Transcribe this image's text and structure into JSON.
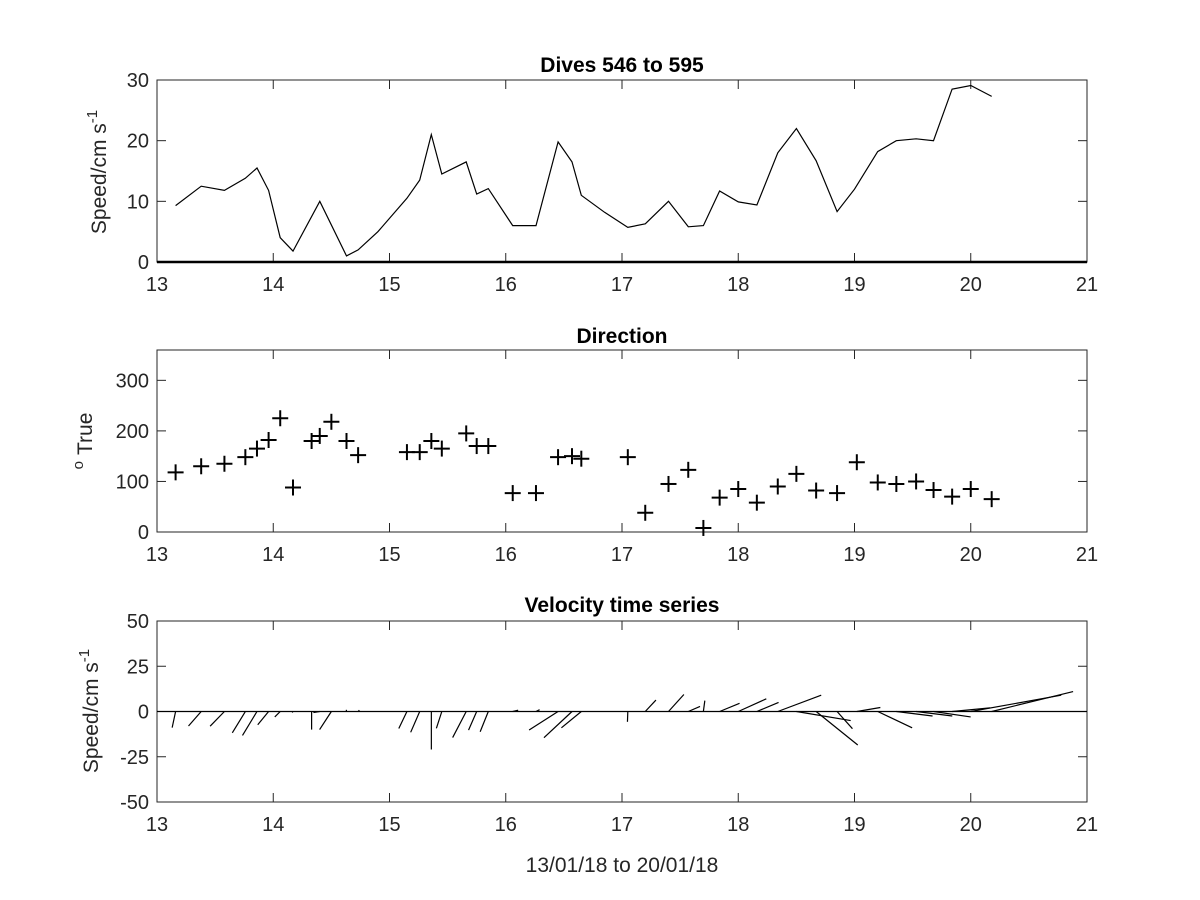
{
  "colors": {
    "line": "#000000",
    "axis": "#262626",
    "background": "#ffffff"
  },
  "chart_data": [
    {
      "type": "line",
      "title": "Dives 546 to 595",
      "ylabel": "Speed/cm s",
      "ylabel_superscript": "-1",
      "xlim": [
        13,
        21
      ],
      "ylim": [
        0,
        30
      ],
      "xticks": [
        "13",
        "14",
        "15",
        "16",
        "17",
        "18",
        "19",
        "20",
        "21"
      ],
      "yticks": [
        "0",
        "10",
        "20",
        "30"
      ],
      "series": [
        {
          "x": [
            13.16,
            13.38,
            13.58,
            13.76,
            13.86,
            13.96,
            14.06,
            14.17,
            14.4,
            14.63,
            14.73,
            14.9,
            15.15,
            15.26,
            15.36,
            15.45,
            15.66,
            15.75,
            15.85,
            16.06,
            16.26,
            16.45,
            16.57,
            16.65,
            16.85,
            17.05,
            17.2,
            17.4,
            17.57,
            17.7,
            17.84,
            18.0,
            18.16,
            18.34,
            18.5,
            18.67,
            18.85,
            19.0,
            19.2,
            19.36,
            19.53,
            19.68,
            19.84,
            20.0,
            20.18
          ],
          "y": [
            9.3,
            12.5,
            11.8,
            13.8,
            15.5,
            11.8,
            4.0,
            1.8,
            10.0,
            1.0,
            2.0,
            5.0,
            10.5,
            13.5,
            21.0,
            14.5,
            16.5,
            11.2,
            12.1,
            6.0,
            6.0,
            19.8,
            16.5,
            11.0,
            8.2,
            5.7,
            6.3,
            10.0,
            5.8,
            6.0,
            11.7,
            9.9,
            9.4,
            18.0,
            22.0,
            16.7,
            8.3,
            12.0,
            18.2,
            20.0,
            20.3,
            20.0,
            28.5,
            29.1,
            27.3
          ]
        }
      ]
    },
    {
      "type": "scatter",
      "title": "Direction",
      "ylabel": "True",
      "ylabel_superscript": "o",
      "xlim": [
        13,
        21
      ],
      "ylim": [
        0,
        360
      ],
      "xticks": [
        "13",
        "14",
        "15",
        "16",
        "17",
        "18",
        "19",
        "20",
        "21"
      ],
      "yticks": [
        "0",
        "100",
        "200",
        "300"
      ],
      "marker": "+",
      "series": [
        {
          "x": [
            13.16,
            13.38,
            13.58,
            13.76,
            13.86,
            13.96,
            14.06,
            14.17,
            14.33,
            14.4,
            14.5,
            14.63,
            14.73,
            15.15,
            15.26,
            15.36,
            15.45,
            15.66,
            15.75,
            15.85,
            16.06,
            16.26,
            16.45,
            16.57,
            16.65,
            17.05,
            17.2,
            17.4,
            17.57,
            17.7,
            17.84,
            18.0,
            18.16,
            18.34,
            18.5,
            18.67,
            18.85,
            19.02,
            19.2,
            19.36,
            19.53,
            19.68,
            19.84,
            20.0,
            20.18
          ],
          "y": [
            118,
            130,
            135,
            148,
            165,
            182,
            225,
            88,
            180,
            190,
            218,
            180,
            152,
            158,
            158,
            180,
            165,
            195,
            170,
            170,
            77,
            77,
            148,
            150,
            145,
            148,
            38,
            95,
            123,
            8,
            68,
            85,
            58,
            90,
            115,
            82,
            77,
            138,
            98,
            95,
            100,
            83,
            70,
            85,
            65
          ]
        }
      ]
    },
    {
      "type": "quiver",
      "title": "Velocity time series",
      "ylabel": "Speed/cm s",
      "ylabel_superscript": "-1",
      "xlabel": "13/01/18 to 20/01/18",
      "xlim": [
        13,
        21
      ],
      "ylim": [
        -50,
        50
      ],
      "xticks": [
        "13",
        "14",
        "15",
        "16",
        "17",
        "18",
        "19",
        "20",
        "21"
      ],
      "yticks": [
        "-50",
        "-25",
        "0",
        "25",
        "50"
      ],
      "series": [
        {
          "x": [
            13.16,
            13.38,
            13.58,
            13.76,
            13.86,
            13.96,
            14.06,
            14.17,
            14.33,
            14.4,
            14.5,
            14.63,
            14.73,
            15.15,
            15.26,
            15.36,
            15.45,
            15.66,
            15.75,
            15.85,
            16.06,
            16.26,
            16.45,
            16.57,
            16.65,
            17.05,
            17.2,
            17.4,
            17.57,
            17.7,
            17.84,
            18.0,
            18.16,
            18.34,
            18.5,
            18.67,
            18.85,
            19.02,
            19.2,
            19.36,
            19.53,
            19.68,
            19.84,
            20.0,
            20.18
          ],
          "u": [
            -1.9,
            -7.0,
            -7.9,
            -7.2,
            -8.0,
            -6.0,
            -3.0,
            -0.5,
            0.0,
            -3.5,
            -6.5,
            -0.1,
            0.7,
            -4.5,
            -5.0,
            0.0,
            -3.0,
            -7.5,
            -4.5,
            -4.5,
            3.0,
            2.0,
            -16.0,
            -15.5,
            -11.0,
            -0.2,
            5.9,
            8.5,
            6.5,
            0.8,
            11.0,
            15.5,
            12.0,
            24.0,
            30.0,
            23.0,
            8.5,
            13.0,
            19.0,
            20.0,
            20.0,
            20.5,
            21.0,
            50.0,
            45.0
          ],
          "v": [
            -8.9,
            -8.0,
            -8.1,
            -11.8,
            -13.2,
            -7.3,
            -3.0,
            -0.5,
            -10.0,
            -0.6,
            -10.0,
            0.9,
            0.7,
            -9.4,
            -11.5,
            -21.0,
            -9.3,
            -14.4,
            -10.3,
            -11.2,
            0.7,
            1.0,
            -10.2,
            -14.5,
            -9.0,
            -5.7,
            6.3,
            9.4,
            2.8,
            6.0,
            4.5,
            7.0,
            5.0,
            9.0,
            -5.0,
            -18.5,
            -9.5,
            2.2,
            -9.0,
            -2.5,
            -2.5,
            -3.0,
            2.0,
            9.0,
            11.0
          ]
        }
      ]
    }
  ]
}
